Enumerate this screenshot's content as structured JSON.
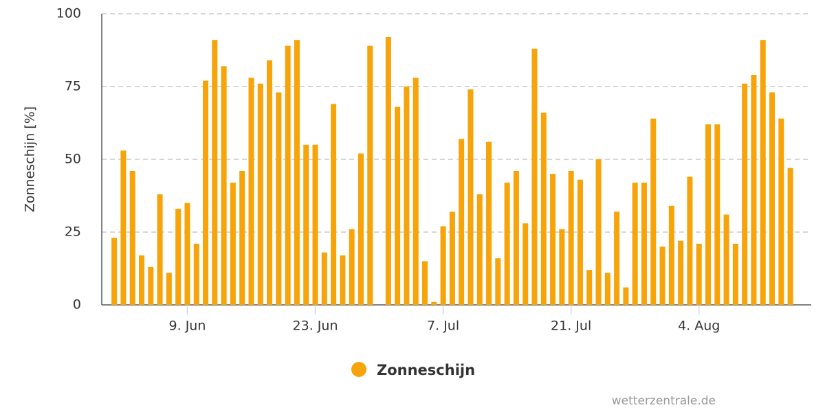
{
  "chart_data": {
    "type": "bar",
    "y_label": "Zonneschijn [%]",
    "categories": [
      null,
      null,
      null,
      null,
      null,
      null,
      null,
      null,
      "9. Jun",
      null,
      null,
      null,
      null,
      null,
      null,
      null,
      null,
      null,
      null,
      null,
      null,
      null,
      "23. Jun",
      null,
      null,
      null,
      null,
      null,
      null,
      null,
      null,
      null,
      null,
      null,
      null,
      null,
      "7. Jul",
      null,
      null,
      null,
      null,
      null,
      null,
      null,
      null,
      null,
      null,
      null,
      null,
      null,
      "21. Jul",
      null,
      null,
      null,
      null,
      null,
      null,
      null,
      null,
      null,
      null,
      null,
      null,
      null,
      "4. Aug",
      null,
      null,
      null,
      null,
      null,
      null,
      null,
      null,
      null,
      null
    ],
    "series": [
      {
        "name": "Zonneschijn",
        "color": "#f7a30a",
        "values": [
          23,
          53,
          46,
          17,
          13,
          38,
          11,
          33,
          35,
          21,
          77,
          91,
          82,
          42,
          46,
          78,
          76,
          84,
          73,
          89,
          91,
          55,
          55,
          18,
          69,
          17,
          26,
          52,
          89,
          0,
          92,
          68,
          75,
          78,
          15,
          1,
          27,
          32,
          57,
          74,
          38,
          56,
          16,
          42,
          46,
          28,
          88,
          66,
          45,
          26,
          46,
          43,
          12,
          50,
          11,
          32,
          6,
          42,
          42,
          64,
          20,
          34,
          22,
          44,
          21,
          62,
          62,
          31,
          21,
          76,
          79,
          91,
          73,
          64,
          47
        ]
      }
    ],
    "ylim": [
      0,
      100
    ],
    "yticks": [
      0,
      25,
      50,
      75,
      100
    ],
    "grid": true,
    "credit": "wetterzentrale.de"
  }
}
